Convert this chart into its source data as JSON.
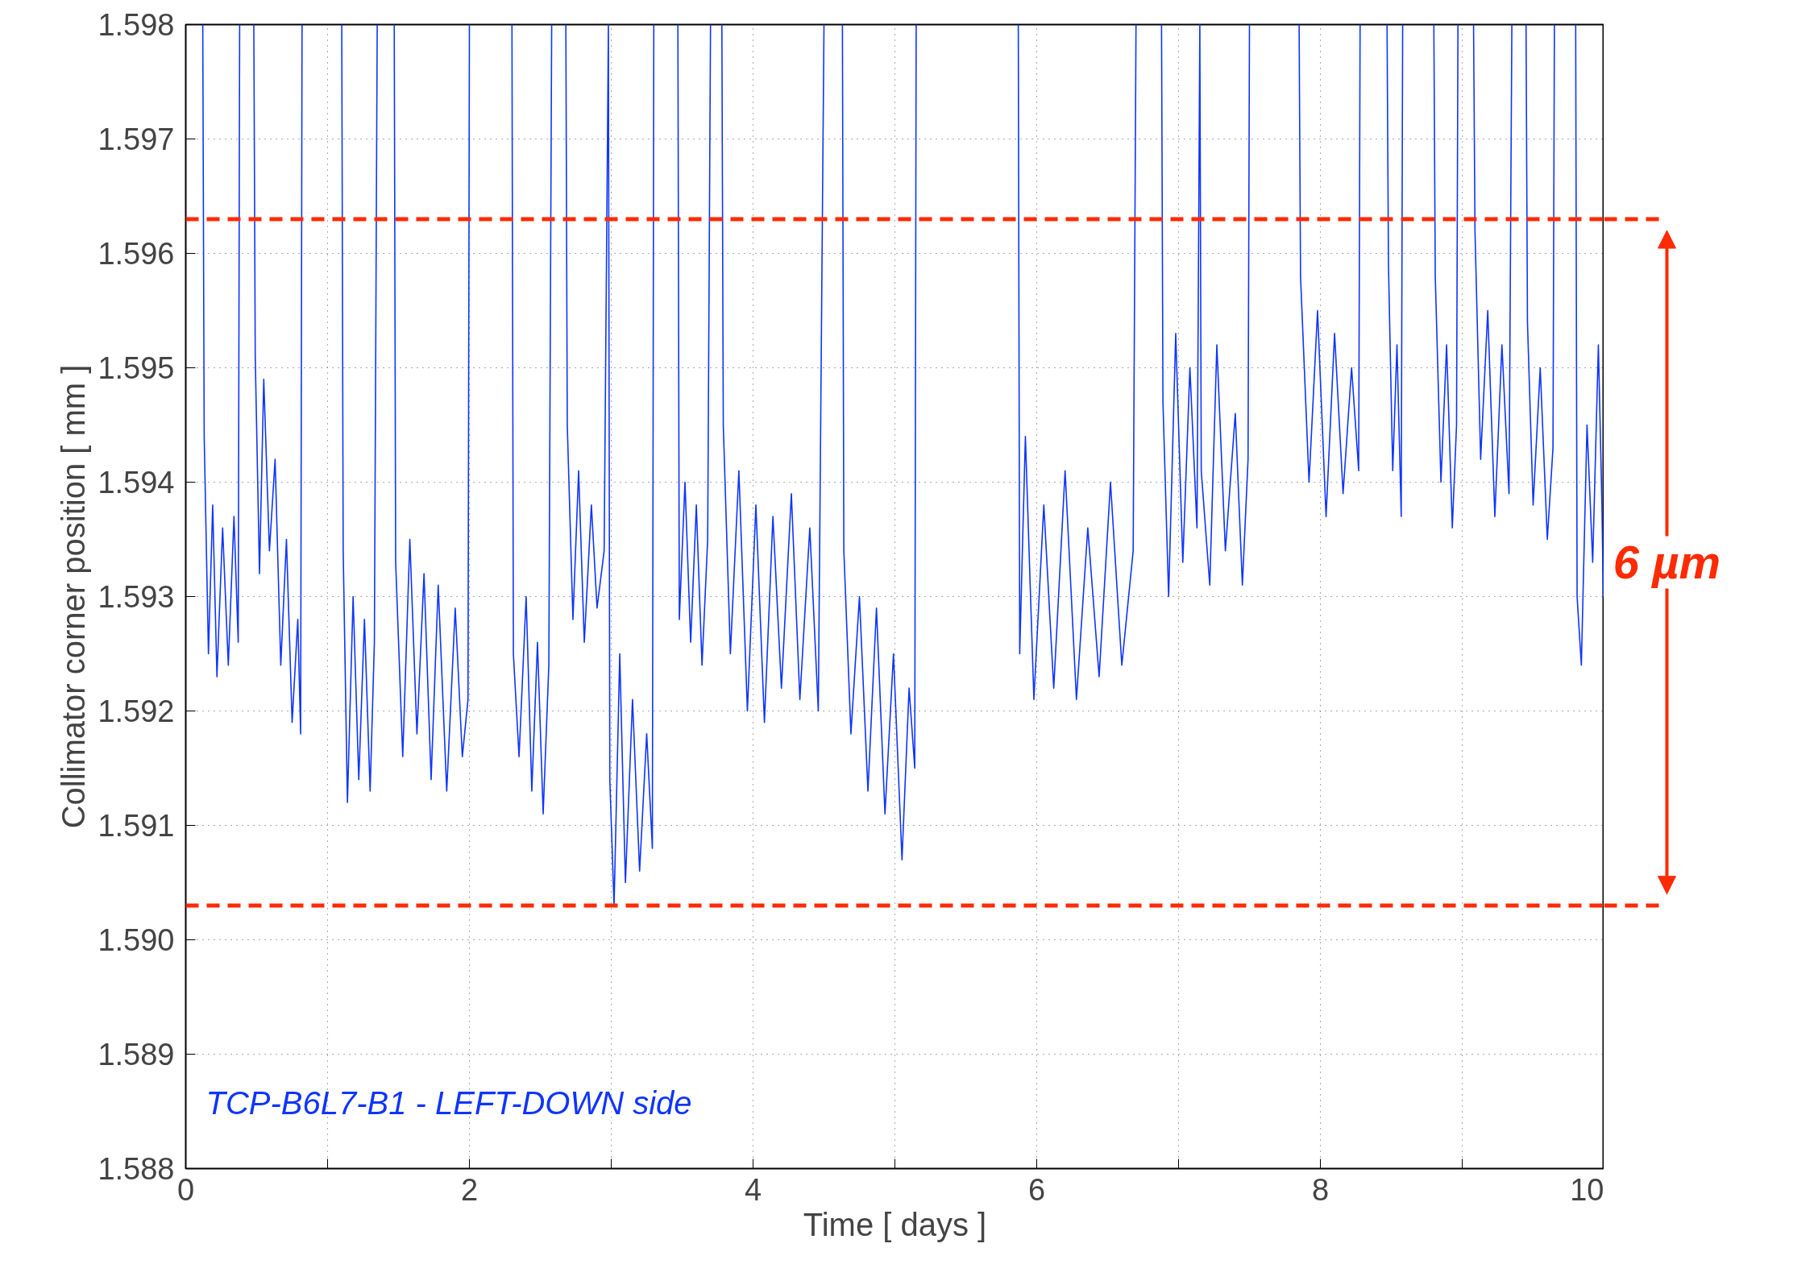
{
  "chart_data": {
    "type": "line",
    "xlabel": "Time [ days ]",
    "ylabel": "Collimator corner position [ mm ]",
    "xlim": [
      0,
      10
    ],
    "ylim": [
      1.588,
      1.598
    ],
    "xticks": [
      0,
      {
        "value": 1,
        "label": null
      },
      2,
      {
        "value": 3,
        "label": null
      },
      4,
      {
        "value": 5,
        "label": null
      },
      6,
      {
        "value": 7,
        "label": null
      },
      8,
      {
        "value": 9,
        "label": null
      },
      10
    ],
    "yticks": [
      1.588,
      1.589,
      {
        "value": 1.59,
        "label": "1.590"
      },
      1.591,
      1.592,
      1.593,
      1.594,
      1.595,
      1.596,
      1.597,
      1.598
    ],
    "grid": true,
    "line_style": "solid",
    "marker": "none",
    "series": [
      {
        "color": "#0f35ff",
        "x": [
          0.12,
          0.13,
          0.16,
          0.19,
          0.22,
          0.26,
          0.3,
          0.34,
          0.37,
          0.38,
          0.43,
          0.48,
          0.49,
          0.52,
          0.55,
          0.59,
          0.63,
          0.67,
          0.71,
          0.75,
          0.79,
          0.81,
          0.82,
          0.96,
          1.1,
          1.11,
          1.14,
          1.18,
          1.22,
          1.26,
          1.3,
          1.33,
          1.35,
          1.41,
          1.47,
          1.48,
          1.53,
          1.58,
          1.63,
          1.68,
          1.73,
          1.78,
          1.84,
          1.9,
          1.95,
          1.99,
          2.0,
          2.15,
          2.3,
          2.31,
          2.35,
          2.4,
          2.44,
          2.48,
          2.52,
          2.56,
          2.58,
          2.63,
          2.68,
          2.69,
          2.73,
          2.77,
          2.81,
          2.86,
          2.9,
          2.95,
          2.98,
          2.99,
          3.02,
          3.06,
          3.1,
          3.15,
          3.2,
          3.25,
          3.29,
          3.3,
          3.38,
          3.47,
          3.48,
          3.52,
          3.56,
          3.6,
          3.64,
          3.68,
          3.7,
          3.74,
          3.78,
          3.79,
          3.84,
          3.9,
          3.96,
          4.02,
          4.08,
          4.14,
          4.2,
          4.27,
          4.33,
          4.4,
          4.46,
          4.5,
          4.56,
          4.63,
          4.64,
          4.69,
          4.75,
          4.81,
          4.87,
          4.93,
          4.99,
          5.05,
          5.1,
          5.14,
          5.15,
          5.5,
          5.87,
          5.88,
          5.92,
          5.98,
          6.05,
          6.12,
          6.2,
          6.28,
          6.36,
          6.44,
          6.52,
          6.6,
          6.68,
          6.7,
          6.79,
          6.88,
          6.89,
          6.93,
          6.98,
          7.03,
          7.08,
          7.13,
          7.15,
          7.16,
          7.22,
          7.27,
          7.33,
          7.4,
          7.45,
          7.49,
          7.5,
          7.67,
          7.85,
          7.86,
          7.92,
          7.98,
          8.04,
          8.1,
          8.16,
          8.22,
          8.27,
          8.28,
          8.37,
          8.47,
          8.48,
          8.51,
          8.54,
          8.57,
          8.58,
          8.69,
          8.8,
          8.81,
          8.85,
          8.89,
          8.93,
          8.96,
          8.97,
          9.02,
          9.08,
          9.09,
          9.13,
          9.18,
          9.23,
          9.28,
          9.33,
          9.35,
          9.4,
          9.45,
          9.46,
          9.5,
          9.55,
          9.6,
          9.64,
          9.65,
          9.72,
          9.8,
          9.81,
          9.84,
          9.88,
          9.92,
          9.96,
          9.985,
          9.995
        ],
        "values": [
          1.598,
          1.5944,
          1.5925,
          1.5938,
          1.5923,
          1.5936,
          1.5924,
          1.5937,
          1.5926,
          1.598,
          null,
          1.598,
          1.5951,
          1.5932,
          1.5949,
          1.5934,
          1.5942,
          1.5924,
          1.5935,
          1.5919,
          1.5928,
          1.5918,
          1.598,
          null,
          1.598,
          1.5934,
          1.5912,
          1.593,
          1.5914,
          1.5928,
          1.5913,
          1.5926,
          1.598,
          null,
          1.598,
          1.5933,
          1.5916,
          1.5935,
          1.5918,
          1.5932,
          1.5914,
          1.5931,
          1.5913,
          1.5929,
          1.5916,
          1.5921,
          1.598,
          null,
          1.598,
          1.5925,
          1.5916,
          1.593,
          1.5913,
          1.5926,
          1.5911,
          1.5924,
          1.598,
          null,
          1.598,
          1.5945,
          1.5928,
          1.5941,
          1.5926,
          1.5938,
          1.5929,
          1.5934,
          1.598,
          1.5914,
          1.5903,
          1.5925,
          1.5905,
          1.5921,
          1.5906,
          1.5918,
          1.5908,
          1.598,
          null,
          1.598,
          1.5928,
          1.594,
          1.5926,
          1.5938,
          1.5924,
          1.5935,
          1.598,
          null,
          1.598,
          1.5945,
          1.5925,
          1.5941,
          1.592,
          1.5938,
          1.5919,
          1.5937,
          1.5922,
          1.5939,
          1.5921,
          1.5936,
          1.592,
          1.598,
          null,
          1.598,
          1.5934,
          1.5918,
          1.593,
          1.5913,
          1.5929,
          1.5911,
          1.5925,
          1.5907,
          1.5922,
          1.5915,
          1.598,
          null,
          1.598,
          1.5925,
          1.5944,
          1.5921,
          1.5938,
          1.5922,
          1.5941,
          1.5921,
          1.5936,
          1.5923,
          1.594,
          1.5924,
          1.5934,
          1.598,
          null,
          1.598,
          1.5947,
          1.593,
          1.5953,
          1.5933,
          1.595,
          1.5936,
          1.598,
          1.5941,
          1.5931,
          1.5952,
          1.5934,
          1.5946,
          1.5931,
          1.5942,
          1.598,
          null,
          1.598,
          1.5958,
          1.594,
          1.5955,
          1.5937,
          1.5953,
          1.5939,
          1.595,
          1.5941,
          1.598,
          null,
          1.598,
          1.5959,
          1.5941,
          1.5952,
          1.5937,
          1.598,
          null,
          1.598,
          1.5958,
          1.594,
          1.5952,
          1.5936,
          1.5945,
          1.598,
          null,
          1.598,
          1.5962,
          1.5942,
          1.5955,
          1.5937,
          1.5952,
          1.5939,
          1.598,
          null,
          1.598,
          1.5954,
          1.5938,
          1.595,
          1.5935,
          1.5943,
          1.598,
          null,
          1.598,
          1.593,
          1.5924,
          1.5945,
          1.5933,
          1.5952,
          1.5938,
          1.593
        ]
      }
    ],
    "ref_lines": [
      {
        "axis": "y",
        "value": 1.5963,
        "color": "#ff2a00",
        "line_style": "dashed"
      },
      {
        "axis": "y",
        "value": 1.5903,
        "color": "#ff2a00",
        "line_style": "dashed"
      }
    ],
    "annotations": [
      "TCP-B6L7-B1 - LEFT-DOWN side",
      "6 µm"
    ]
  }
}
